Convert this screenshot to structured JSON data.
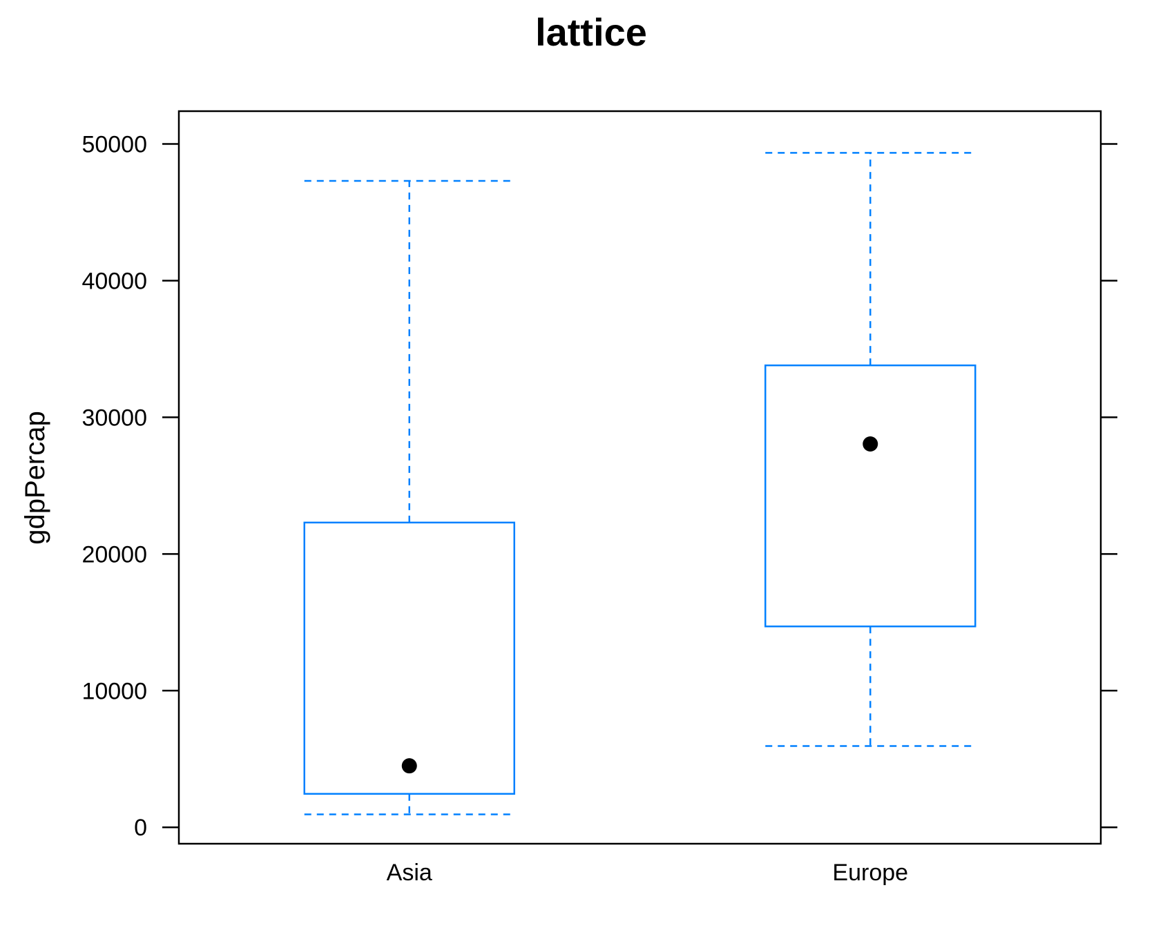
{
  "chart_data": {
    "type": "box",
    "title": "lattice",
    "xlabel": "",
    "ylabel": "gdpPercap",
    "categories": [
      "Asia",
      "Europe"
    ],
    "ylim": [
      -1200,
      52400
    ],
    "yticks": [
      0,
      10000,
      20000,
      30000,
      40000,
      50000
    ],
    "ytick_labels": [
      "0",
      "10000",
      "20000",
      "30000",
      "40000",
      "50000"
    ],
    "boxes": [
      {
        "category": "Asia",
        "whisker_low": 950,
        "q1": 2450,
        "median": 4500,
        "q3": 22300,
        "whisker_high": 47300
      },
      {
        "category": "Europe",
        "whisker_low": 5950,
        "q1": 14700,
        "median": 28050,
        "q3": 33800,
        "whisker_high": 49350
      }
    ],
    "grid": false,
    "colors": {
      "box": "#0080ff",
      "median_dot": "#000000",
      "frame": "#000000"
    }
  }
}
